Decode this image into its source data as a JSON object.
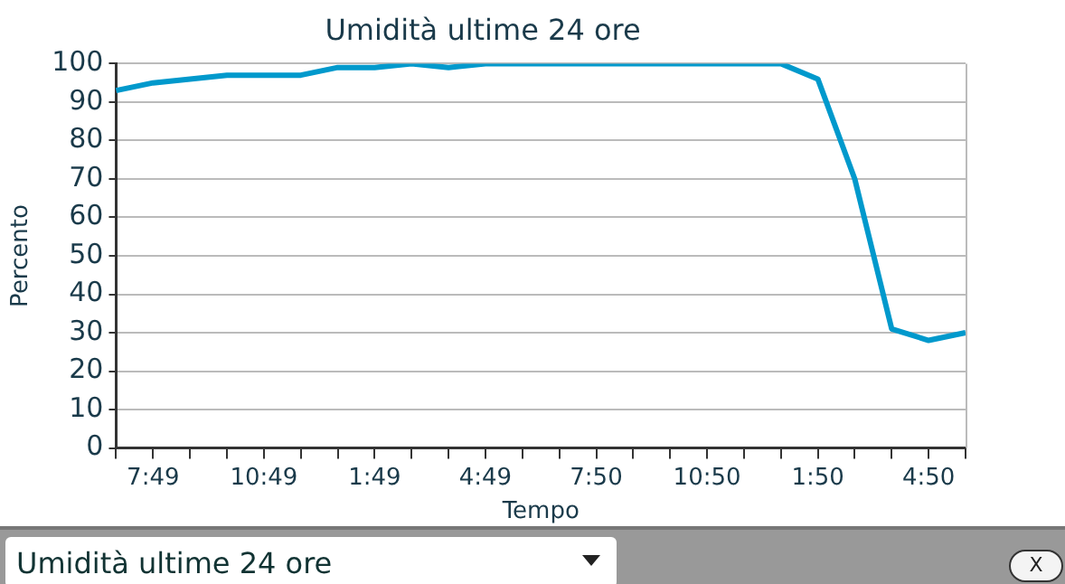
{
  "chart_data": {
    "type": "line",
    "title": "Umidità ultime 24 ore",
    "xlabel": "Tempo",
    "ylabel": "Percento",
    "categories": [
      null,
      "7:49",
      null,
      null,
      "10:49",
      null,
      null,
      "1:49",
      null,
      null,
      "4:49",
      null,
      null,
      "7:50",
      null,
      null,
      "10:50",
      null,
      null,
      "1:50",
      null,
      null,
      "4:50",
      null
    ],
    "series": [
      {
        "color": "#0099cc",
        "values": [
          93,
          95,
          96,
          97,
          97,
          97,
          99,
          99,
          100,
          99,
          100,
          100,
          100,
          100,
          100,
          100,
          100,
          100,
          100,
          96,
          70,
          31,
          28,
          30
        ]
      }
    ],
    "ylim": [
      0,
      100
    ],
    "yticks": [
      0,
      10,
      20,
      30,
      40,
      50,
      60,
      70,
      80,
      90,
      100
    ],
    "grid": "y",
    "legend": false,
    "marker": "none",
    "line_style": "solid",
    "annotations": [
      "Umidità ultime 24 ore",
      "X"
    ]
  }
}
